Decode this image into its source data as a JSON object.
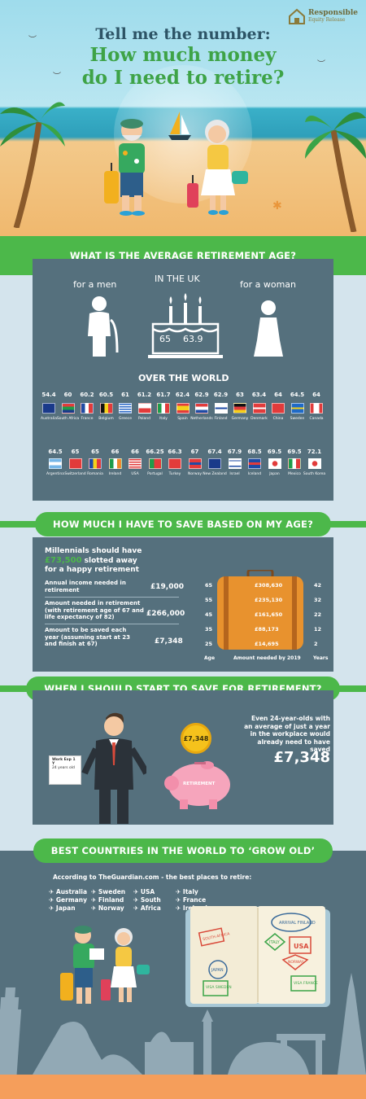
{
  "brand": {
    "name_line1": "Responsible",
    "name_line2": "Equity Release"
  },
  "hero": {
    "title_line1": "Tell me the number:",
    "title_line2": "How much money",
    "title_line3": "do I need to retire?"
  },
  "retirement_age": {
    "header": "WHAT IS THE AVERAGE RETIREMENT AGE?",
    "uk_label": "IN THE UK",
    "men_label": "for a men",
    "women_label": "for a woman",
    "men_age": "65",
    "women_age": "63.9",
    "world_label": "OVER THE WORLD",
    "row1": [
      {
        "age": "54.4",
        "country": "Australia"
      },
      {
        "age": "60",
        "country": "South Africa"
      },
      {
        "age": "60.2",
        "country": "France"
      },
      {
        "age": "60.5",
        "country": "Belgium"
      },
      {
        "age": "61",
        "country": "Greece"
      },
      {
        "age": "61.2",
        "country": "Poland"
      },
      {
        "age": "61.7",
        "country": "Italy"
      },
      {
        "age": "62.4",
        "country": "Spain"
      },
      {
        "age": "62.9",
        "country": "Netherlands"
      },
      {
        "age": "62.9",
        "country": "Finland"
      },
      {
        "age": "63",
        "country": "Germany"
      },
      {
        "age": "63.4",
        "country": "Denmark"
      },
      {
        "age": "64",
        "country": "China"
      },
      {
        "age": "64.5",
        "country": "Sweden"
      },
      {
        "age": "64",
        "country": "Canada"
      }
    ],
    "row2": [
      {
        "age": "64.5",
        "country": "Argentina"
      },
      {
        "age": "65",
        "country": "Switzerland"
      },
      {
        "age": "65",
        "country": "Romania"
      },
      {
        "age": "66",
        "country": "Ireland"
      },
      {
        "age": "66",
        "country": "USA"
      },
      {
        "age": "66.25",
        "country": "Portugal"
      },
      {
        "age": "66.3",
        "country": "Turkey"
      },
      {
        "age": "67",
        "country": "Norway"
      },
      {
        "age": "67.4",
        "country": "New Zealand"
      },
      {
        "age": "67.9",
        "country": "Israel"
      },
      {
        "age": "68.5",
        "country": "Iceland"
      },
      {
        "age": "69.5",
        "country": "Japan"
      },
      {
        "age": "69.5",
        "country": "Mexico"
      },
      {
        "age": "72.1",
        "country": "South Korea"
      }
    ]
  },
  "save_by_age": {
    "header": "HOW MUCH I HAVE TO SAVE BASED ON MY AGE?",
    "intro_line1": "Millennials should have",
    "intro_amount": "£73,500",
    "intro_line2": " slotted away",
    "intro_line3": "for a happy retirement",
    "rows": [
      {
        "label": "Annual income needed in retirement",
        "value": "£19,000"
      },
      {
        "label": "Amount needed in retirement (with retirement age of 67 and life expectancy of 82)",
        "value": "£266,000"
      },
      {
        "label": "Amount to be saved each year (assuming start at 23 and finish at 67)",
        "value": "£7,348"
      }
    ],
    "table": [
      {
        "age": "65",
        "amount": "£308,630",
        "years": "42"
      },
      {
        "age": "55",
        "amount": "£235,130",
        "years": "32"
      },
      {
        "age": "45",
        "amount": "£161,650",
        "years": "22"
      },
      {
        "age": "35",
        "amount": "£88,173",
        "years": "12"
      },
      {
        "age": "25",
        "amount": "£14,695",
        "years": "2"
      }
    ],
    "col_age": "Age",
    "col_amount": "Amount needed by 2019",
    "col_years": "Years"
  },
  "start_saving": {
    "header": "WHEN I SHOULD START TO SAVE FOR RETIREMENT?",
    "paper_line1": "Work Exp 1 Y",
    "paper_line2": "24 years old",
    "coin": "£7,348",
    "piggy": "RETIREMENT",
    "text": "Even 24-year-olds with an average of just a year in the workplace would already need to have saved",
    "amount": "£7,348"
  },
  "best_countries": {
    "header": "BEST COUNTRIES IN THE WORLD TO ‘GROW OLD’",
    "intro": "According to TheGuardian.com - the best places to retire:",
    "col1": [
      "Australia",
      "Germany",
      "Japan"
    ],
    "col2": [
      "Sweden",
      "Finland",
      "Norway"
    ],
    "col3": [
      "USA",
      "South",
      "Africa"
    ],
    "col4": [
      "Italy",
      "France",
      "Ireland"
    ],
    "stamps": [
      "SOUTH AFRICA",
      "ARRIVAL FINLAND",
      "ITALY",
      "USA",
      "NORWAY",
      "JAPAN",
      "VISA SWEDEN",
      "VISA FRANCE"
    ]
  }
}
